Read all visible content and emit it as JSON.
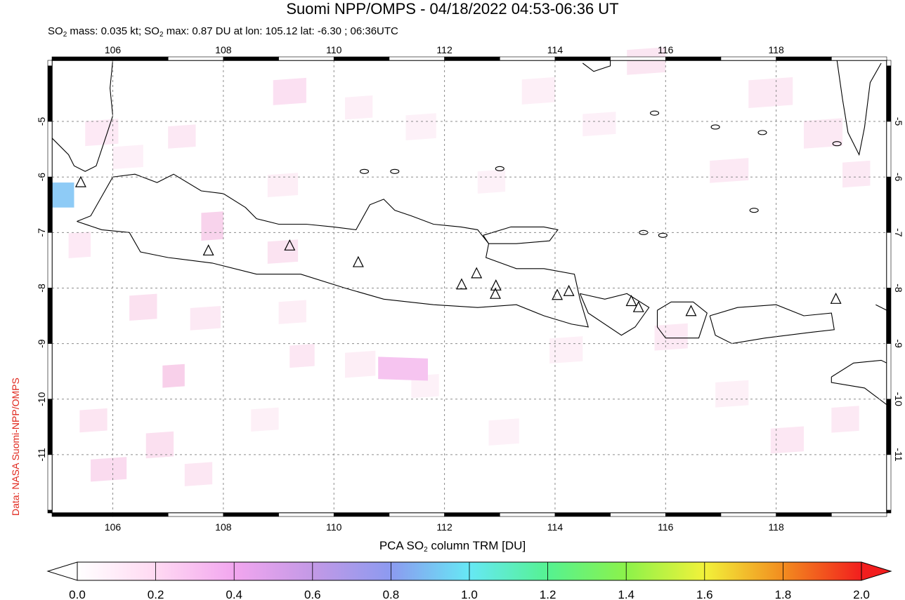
{
  "title": "Suomi NPP/OMPS - 04/18/2022 04:53-06:36 UT",
  "subtitle": {
    "part1": "SO",
    "sub1": "2",
    "part2": " mass: 0.035 kt; SO",
    "sub2": "2",
    "part3": " max: 0.87 DU at lon: 105.12 lat: -6.30 ; 06:36UTC"
  },
  "credit": "Data: NASA Suomi-NPP/OMPS",
  "colorbar": {
    "title_pre": "PCA SO",
    "title_sub": "2",
    "title_post": " column TRM [DU]",
    "ticks": [
      "0.0",
      "0.2",
      "0.4",
      "0.6",
      "0.8",
      "1.0",
      "1.2",
      "1.4",
      "1.6",
      "1.8",
      "2.0"
    ],
    "colors": [
      "#ffffff",
      "#ffd9f2",
      "#f2a6ef",
      "#c399e6",
      "#8c9af0",
      "#66e8f5",
      "#55f291",
      "#8cf24a",
      "#f2f23a",
      "#f28c1f",
      "#f21e1e"
    ]
  },
  "map": {
    "lon_range": [
      104.9,
      120.0
    ],
    "lat_range": [
      -12.05,
      -3.9
    ],
    "lon_ticks": [
      "106",
      "108",
      "110",
      "112",
      "114",
      "116",
      "118"
    ],
    "lat_ticks": [
      "-5",
      "-6",
      "-7",
      "-8",
      "-9",
      "-10",
      "-11"
    ],
    "volcano_icon": "triangle-icon",
    "volcanoes": [
      [
        107.73,
        -7.33
      ],
      [
        109.2,
        -7.24
      ],
      [
        110.44,
        -7.54
      ],
      [
        112.31,
        -7.94
      ],
      [
        112.58,
        -7.74
      ],
      [
        112.93,
        -7.96
      ],
      [
        112.92,
        -8.11
      ],
      [
        114.04,
        -8.13
      ],
      [
        114.25,
        -8.06
      ],
      [
        115.38,
        -8.24
      ],
      [
        115.51,
        -8.35
      ],
      [
        116.46,
        -8.42
      ],
      [
        119.08,
        -8.2
      ],
      [
        105.42,
        -6.1
      ]
    ],
    "so2_max_pixel": {
      "lon_min": 104.9,
      "lon_max": 105.3,
      "lat_min": -6.55,
      "lat_max": -6.1,
      "value": 0.87
    }
  }
}
